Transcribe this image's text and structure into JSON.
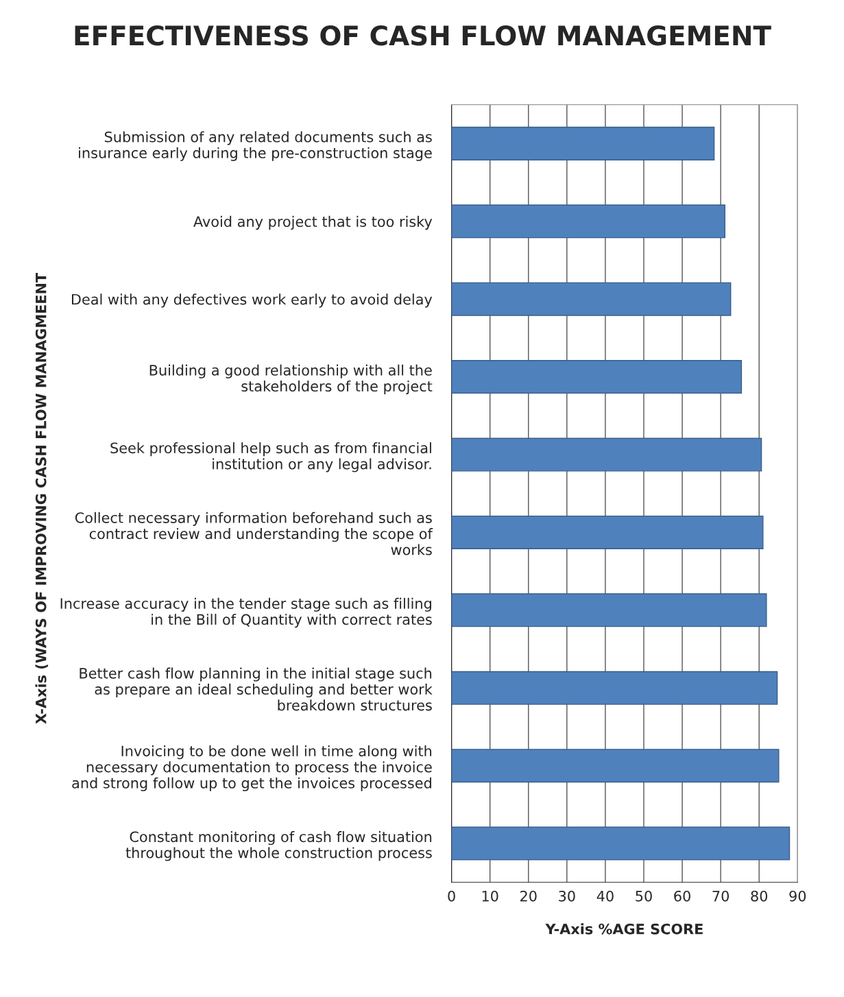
{
  "chart_data": {
    "type": "bar",
    "orientation": "horizontal",
    "title": "EFFECTIVENESS OF CASH FLOW MANAGEMENT",
    "xlabel": "Y-Axis %AGE SCORE",
    "ylabel": "X-Axis (WAYS OF IMPROVING CASH FLOW MANAGMEENT",
    "categories": [
      "Submission of any related documents such as\ninsurance early during the pre-construction stage",
      "Avoid any project that is too risky",
      "Deal with any defectives work early to avoid delay",
      "Building a good relationship with all the\nstakeholders of the project",
      "Seek professional help such as from financial\ninstitution or any legal advisor.",
      "Collect necessary information beforehand such as\ncontract review and understanding the scope of\nworks",
      "Increase accuracy in the tender stage such as filling\nin the Bill of Quantity with correct rates",
      "Better cash flow planning in the initial stage such\nas prepare an ideal scheduling and better work\nbreakdown structures",
      "Invoicing to be done well in time along with\nnecessary documentation to process the invoice\nand strong follow up to get the invoices processed",
      "Constant monitoring of cash flow situation\nthroughout the whole construction process"
    ],
    "values": [
      68.3,
      71.1,
      72.6,
      75.4,
      80.6,
      81.0,
      81.9,
      84.7,
      85.1,
      87.9
    ],
    "color": "#4f81bd",
    "xlim": [
      0,
      90
    ],
    "xticks": [
      0,
      10,
      20,
      30,
      40,
      50,
      60,
      70,
      80,
      90
    ],
    "grid": "x"
  }
}
